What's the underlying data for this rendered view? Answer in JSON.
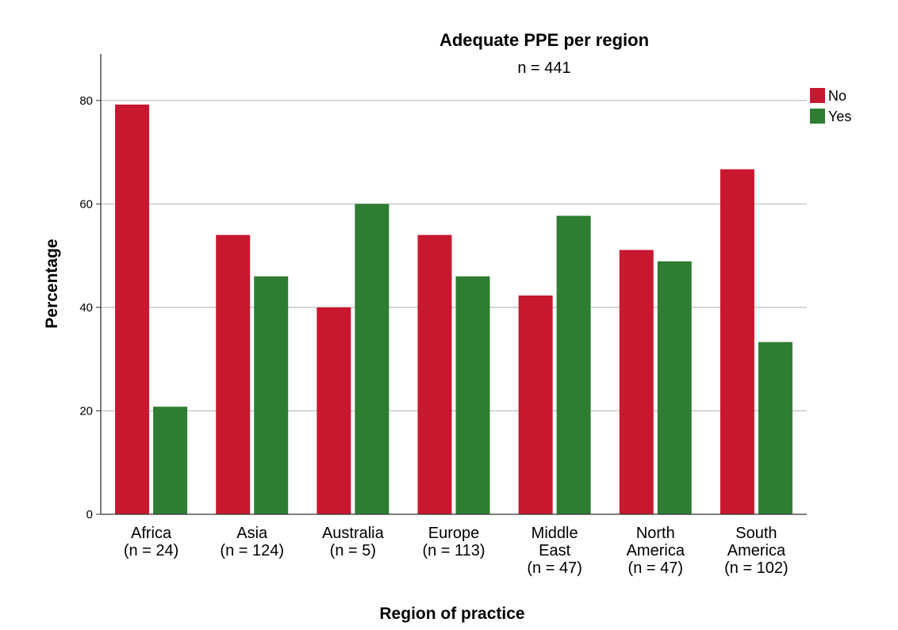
{
  "chart_data": {
    "type": "bar",
    "title": "Adequate PPE per region",
    "subtitle": "n = 441",
    "xlabel": "Region of practice",
    "ylabel": "Percentage",
    "ylim": [
      0,
      89
    ],
    "yticks": [
      0,
      20,
      40,
      60,
      80
    ],
    "grid": true,
    "legend_position": "top-right",
    "categories": [
      [
        "Africa",
        "(n = 24)"
      ],
      [
        "Asia",
        "(n = 124)"
      ],
      [
        "Australia",
        "(n = 5)"
      ],
      [
        "Europe",
        "(n = 113)"
      ],
      [
        "Middle",
        "East",
        "(n = 47)"
      ],
      [
        "North",
        "America",
        "(n = 47)"
      ],
      [
        "South",
        "America",
        "(n = 102)"
      ]
    ],
    "series": [
      {
        "name": "No",
        "color": "#c8182f",
        "values": [
          79.2,
          54.0,
          40.0,
          54.0,
          42.3,
          51.1,
          66.7
        ]
      },
      {
        "name": "Yes",
        "color": "#2e7d32",
        "values": [
          20.8,
          46.0,
          60.0,
          46.0,
          57.7,
          48.9,
          33.3
        ]
      }
    ]
  }
}
